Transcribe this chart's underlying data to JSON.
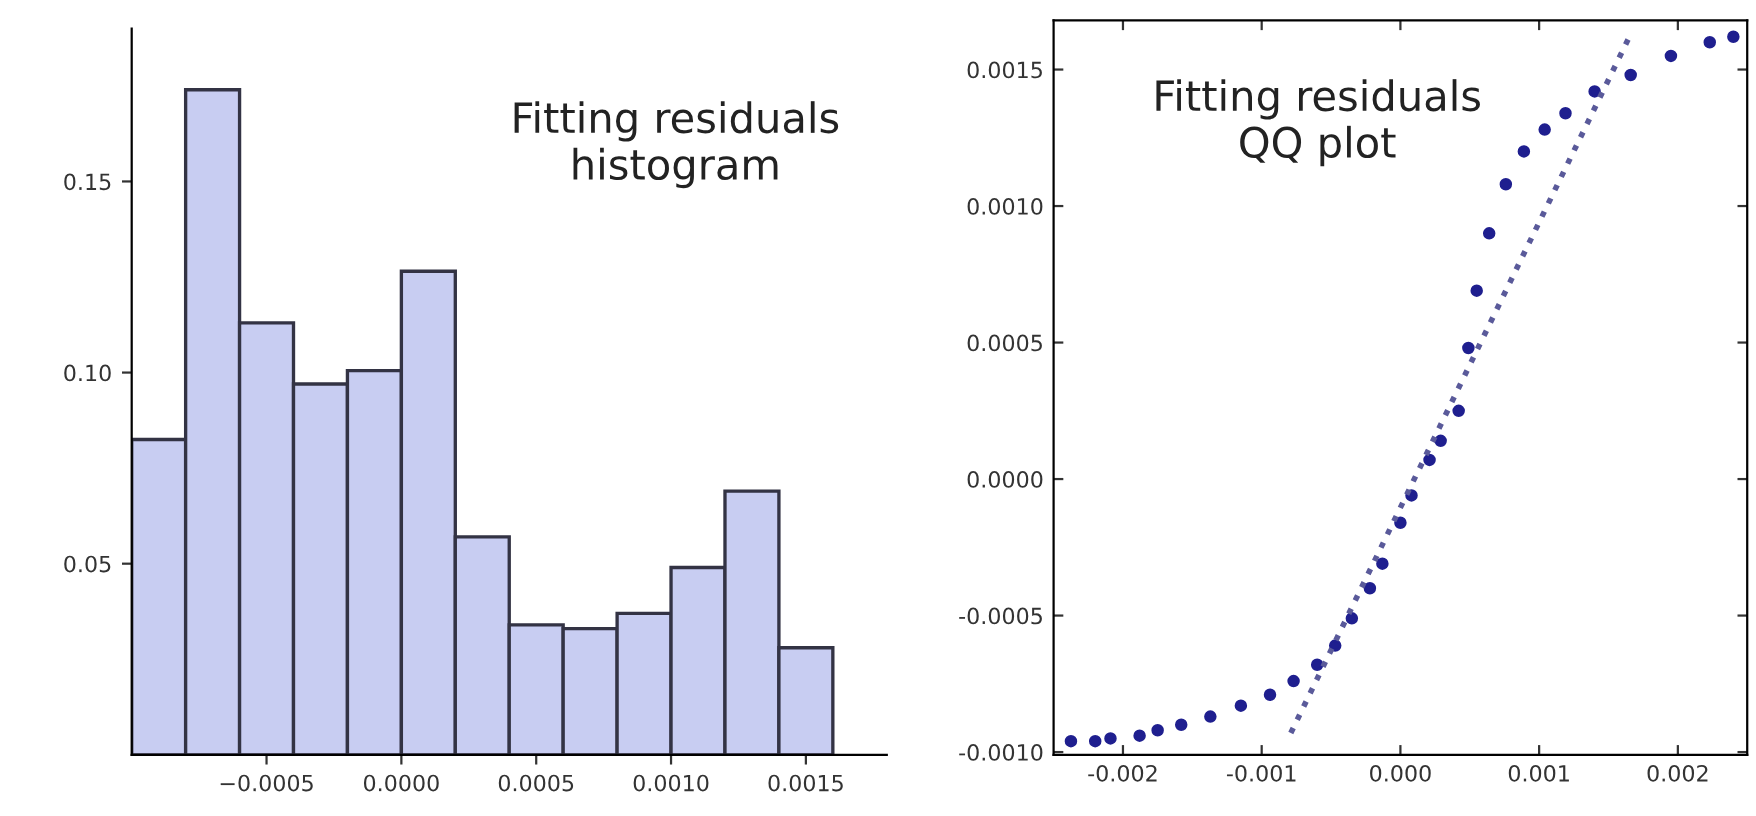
{
  "chart_data": [
    {
      "type": "histogram",
      "annotations": [
        "Fitting residuals\nhistogram"
      ],
      "bins": [
        -0.001,
        -0.0008,
        -0.0006,
        -0.0004,
        -0.0002,
        0.0,
        0.0002,
        0.0004,
        0.0006,
        0.0008,
        0.001,
        0.0012,
        0.0014,
        0.0016
      ],
      "values": [
        0.0825,
        0.174,
        0.113,
        0.097,
        0.1005,
        0.1265,
        0.057,
        0.034,
        0.033,
        0.037,
        0.049,
        0.069,
        0.028
      ],
      "color": "#c8cdf2",
      "xlim": [
        -0.001,
        0.0018
      ],
      "ylim": [
        0,
        0.19
      ],
      "xticks": [
        {
          "value": -0.0005,
          "label": "−0.0005"
        },
        {
          "value": 0.0,
          "label": "0.0000"
        },
        {
          "value": 0.0005,
          "label": "0.0005"
        },
        {
          "value": 0.001,
          "label": "0.0010"
        },
        {
          "value": 0.0015,
          "label": "0.0015"
        }
      ],
      "yticks": [
        0.05,
        {
          "value": 0.1,
          "label": "0.10"
        },
        0.15
      ],
      "grid": false,
      "legend": false
    },
    {
      "type": "scatter",
      "annotations": [
        "Fitting residuals\nQQ plot"
      ],
      "series": [
        {
          "type": "scatter",
          "color": "#1f1f8f",
          "marker": "circle",
          "x": [
            -0.002375,
            -0.0022,
            -0.00209,
            -0.00188,
            -0.00175,
            -0.00158,
            -0.00137,
            -0.00115,
            -0.00094,
            -0.00077,
            -0.0006,
            -0.00047,
            -0.00035,
            -0.00022,
            -0.00013,
            0.0,
            8e-05,
            0.00021,
            0.00029,
            0.00042,
            0.00049,
            0.00055,
            0.00064,
            0.00076,
            0.00089,
            0.00104,
            0.00119,
            0.0014,
            0.00166,
            0.00195,
            0.00223,
            0.0024
          ],
          "values": [
            -0.00096,
            -0.00096,
            -0.00095,
            -0.00094,
            -0.00092,
            -0.0009,
            -0.00087,
            -0.00083,
            -0.00079,
            -0.00074,
            -0.00068,
            -0.00061,
            -0.00051,
            -0.0004,
            -0.00031,
            -0.00016,
            -6e-05,
            7e-05,
            0.00014,
            0.00025,
            0.00048,
            0.00069,
            0.0009,
            0.00108,
            0.0012,
            0.00128,
            0.00134,
            0.00142,
            0.00148,
            0.00155,
            0.0016,
            0.00162
          ]
        },
        {
          "type": "line",
          "color": "#5a5a9a",
          "line_style": "dotted",
          "x": [
            -0.00079,
            0.00166
          ],
          "values": [
            -0.00093,
            0.00163
          ]
        }
      ],
      "xlim": [
        -0.0025,
        0.0025
      ],
      "ylim": [
        -0.00101,
        0.00168
      ],
      "xticks": [
        {
          "value": -0.002,
          "label": "-0.002"
        },
        {
          "value": -0.001,
          "label": "-0.001"
        },
        {
          "value": 0.0,
          "label": "0.000"
        },
        {
          "value": 0.001,
          "label": "0.001"
        },
        {
          "value": 0.002,
          "label": "0.002"
        }
      ],
      "yticks": [
        {
          "value": -0.001,
          "label": "-0.0010"
        },
        {
          "value": -0.0005,
          "label": "-0.0005"
        },
        {
          "value": 0.0,
          "label": "0.0000"
        },
        {
          "value": 0.0005,
          "label": "0.0005"
        },
        {
          "value": 0.001,
          "label": "0.0010"
        },
        {
          "value": 0.0015,
          "label": "0.0015"
        }
      ],
      "grid": false,
      "legend": false
    }
  ]
}
